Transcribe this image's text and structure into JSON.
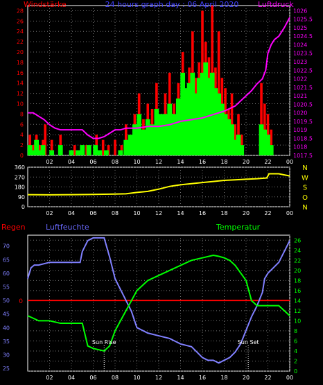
{
  "chart_data": [
    {
      "type": "bar",
      "title": "24 hours graph day : 06 April 2020",
      "left_axis_label": "Windstärke",
      "right_axis_label": "Luftdruck",
      "y_ticks": [
        "0",
        "2",
        "4",
        "6",
        "8",
        "10",
        "12",
        "14",
        "16",
        "18",
        "20",
        "22",
        "24",
        "26",
        "28"
      ],
      "y2_ticks": [
        "1017.5",
        "1018",
        "1018.5",
        "1019",
        "1019.5",
        "1020",
        "1020.5",
        "1021",
        "1021.5",
        "1022",
        "1022.5",
        "1023",
        "1023.5",
        "1024",
        "1024.5",
        "1025",
        "1025.5",
        "1026"
      ],
      "x_ticks": [
        "02",
        "04",
        "06",
        "08",
        "10",
        "12",
        "14",
        "16",
        "18",
        "20",
        "22",
        "00"
      ],
      "ylim": [
        0,
        29
      ],
      "y2lim": [
        1017.5,
        1026.3
      ],
      "xlim": [
        0,
        24
      ],
      "series": [
        {
          "color": "#ff0000",
          "x": [
            0.2,
            0.5,
            0.8,
            1.1,
            1.4,
            1.6,
            2.2,
            3.0,
            4.3,
            5.4,
            6.3,
            6.9,
            7.4,
            8.0,
            8.6,
            9.0,
            9.4,
            9.8,
            10.2,
            10.6,
            11.0,
            11.4,
            11.8,
            12.2,
            12.6,
            13.0,
            13.4,
            13.8,
            14.2,
            14.5,
            14.8,
            15.1,
            15.4,
            15.7,
            16.0,
            16.3,
            16.6,
            16.9,
            17.2,
            17.5,
            17.8,
            18.1,
            18.4,
            18.7,
            19.0,
            19.3,
            19.6,
            21.4,
            21.7,
            22.0,
            22.3
          ],
          "values": [
            4,
            2,
            4,
            2,
            3,
            6,
            3,
            4,
            2,
            2,
            4,
            3,
            2,
            3,
            2,
            6,
            4,
            8,
            12,
            7,
            10,
            9,
            14,
            8,
            12,
            16,
            10,
            14,
            20,
            12,
            17,
            24,
            15,
            18,
            28,
            22,
            19,
            29,
            17,
            24,
            15,
            13,
            9,
            12,
            6,
            8,
            4,
            14,
            10,
            8,
            5
          ]
        },
        {
          "color": "#00ff00",
          "x": [
            0.2,
            0.5,
            0.8,
            1.1,
            1.4,
            2.2,
            3.0,
            4.0,
            4.6,
            5.0,
            5.6,
            6.2,
            6.6,
            7.2,
            8.5,
            9.0,
            9.4,
            9.8,
            10.2,
            10.6,
            11.0,
            11.4,
            11.8,
            12.2,
            12.6,
            13.0,
            13.4,
            13.8,
            14.2,
            14.5,
            14.8,
            15.1,
            15.4,
            15.7,
            16.0,
            16.3,
            16.6,
            16.9,
            17.2,
            17.5,
            17.8,
            18.1,
            18.4,
            18.7,
            19.0,
            19.3,
            19.6,
            21.4,
            21.7,
            22.0,
            22.3
          ],
          "values": [
            2,
            1,
            3,
            1,
            2,
            1,
            2,
            1,
            1,
            2,
            2,
            2,
            1,
            1,
            1,
            3,
            4,
            6,
            8,
            5,
            7,
            6,
            9,
            8,
            8,
            10,
            8,
            11,
            16,
            13,
            14,
            16,
            12,
            15,
            16,
            18,
            15,
            16,
            13,
            12,
            10,
            8,
            7,
            6,
            3,
            4,
            2,
            6,
            5,
            4,
            2
          ]
        },
        {
          "type": "line",
          "color": "#ff00ff",
          "x": [
            0,
            0.5,
            1,
            1.5,
            2,
            2.5,
            3,
            4,
            5,
            5.5,
            6,
            6.5,
            7,
            7.5,
            8,
            8.5,
            9,
            10,
            11,
            12,
            13,
            14,
            15,
            16,
            17,
            18,
            19,
            19.5,
            20,
            20.5,
            21,
            21.5,
            21.8,
            22,
            22.3,
            22.6,
            23,
            23.5,
            24
          ],
          "values": [
            1020.0,
            1020.0,
            1019.8,
            1019.6,
            1019.3,
            1019.1,
            1019.0,
            1019.0,
            1019.0,
            1018.7,
            1018.5,
            1018.5,
            1018.6,
            1018.8,
            1019.0,
            1019.0,
            1019.1,
            1019.1,
            1019.2,
            1019.2,
            1019.3,
            1019.5,
            1019.6,
            1019.7,
            1019.9,
            1020.1,
            1020.4,
            1020.7,
            1021.0,
            1021.3,
            1021.7,
            1022.0,
            1022.5,
            1023.5,
            1024.0,
            1024.3,
            1024.5,
            1025.0,
            1025.6
          ]
        }
      ]
    },
    {
      "type": "line",
      "y_ticks": [
        "0",
        "90",
        "180",
        "270",
        "360"
      ],
      "right_labels": [
        "N",
        "W",
        "S",
        "O",
        "N"
      ],
      "x_ticks": [
        "02",
        "04",
        "06",
        "08",
        "10",
        "12",
        "14",
        "16",
        "18",
        "20",
        "22",
        "00"
      ],
      "ylim": [
        0,
        360
      ],
      "xlim": [
        0,
        24
      ],
      "series": [
        {
          "color": "#ffff00",
          "x": [
            0,
            2,
            4,
            6,
            8,
            9,
            10,
            11,
            12,
            13,
            14,
            15,
            16,
            17,
            18,
            19,
            20,
            21,
            21.9,
            22,
            22.1,
            23,
            23.5,
            24
          ],
          "values": [
            110,
            108,
            110,
            112,
            115,
            118,
            130,
            140,
            160,
            185,
            200,
            210,
            220,
            230,
            240,
            245,
            250,
            255,
            262,
            280,
            300,
            300,
            290,
            280
          ]
        }
      ]
    },
    {
      "type": "line",
      "legend": [
        "Regen",
        "Luftfeuchte",
        "Temperatur"
      ],
      "y_ticks_humidity": [
        "25",
        "30",
        "35",
        "40",
        "45",
        "50",
        "55",
        "60",
        "65",
        "70"
      ],
      "y_ticks_temperature": [
        "0",
        "2",
        "4",
        "6",
        "8",
        "10",
        "12",
        "14",
        "16",
        "18",
        "20",
        "22",
        "24",
        "26"
      ],
      "rain_axis_tick": "0",
      "x_ticks": [
        "02",
        "04",
        "06",
        "08",
        "10",
        "12",
        "14",
        "16",
        "18",
        "20",
        "22",
        "00"
      ],
      "xlim": [
        0,
        24
      ],
      "humidity_lim": [
        24,
        74
      ],
      "temperature_lim": [
        0,
        27
      ],
      "annotations": [
        {
          "text": "Sun Rise",
          "x": 7.0
        },
        {
          "text": "Sun Set",
          "x": 20.2
        }
      ],
      "series": [
        {
          "color": "#ff0000",
          "x": [
            0,
            24
          ],
          "values": [
            0,
            0
          ]
        },
        {
          "color": "#8080ff",
          "x": [
            0,
            0.3,
            0.6,
            1,
            2,
            4,
            4.8,
            5.0,
            5.5,
            6,
            7,
            7.5,
            8,
            8.5,
            9,
            9.5,
            10,
            11,
            12,
            13,
            14,
            15,
            15.5,
            16,
            16.5,
            17,
            17.5,
            18,
            18.5,
            19,
            19.5,
            20,
            20.5,
            21,
            21.5,
            21.7,
            22,
            22.5,
            23,
            23.5,
            24
          ],
          "values": [
            58,
            62,
            63,
            63,
            64,
            64,
            64,
            68,
            72,
            73,
            73,
            66,
            58,
            54,
            50,
            46,
            40,
            38,
            37,
            36,
            34,
            33,
            31,
            29,
            28,
            28,
            27,
            28,
            29,
            31,
            34,
            39,
            44,
            48,
            53,
            58,
            60,
            62,
            64,
            68,
            72
          ]
        },
        {
          "color": "#00ff00",
          "x": [
            0,
            0.5,
            1,
            2,
            3,
            4,
            5,
            5.5,
            6,
            7,
            7.5,
            8,
            8.5,
            9,
            9.5,
            10,
            11,
            12,
            13,
            14,
            15,
            16,
            17,
            17.5,
            18,
            18.5,
            19,
            20,
            20.5,
            21,
            22,
            23,
            23.5,
            24
          ],
          "values": [
            11,
            10.5,
            10,
            10,
            9.5,
            9.5,
            9.5,
            5,
            4.5,
            4,
            5,
            8,
            10,
            12,
            14,
            16,
            18,
            19,
            20,
            21,
            22,
            22.5,
            23,
            22.8,
            22.5,
            22,
            21,
            18,
            14,
            13,
            13,
            13,
            12,
            11
          ]
        }
      ]
    }
  ]
}
